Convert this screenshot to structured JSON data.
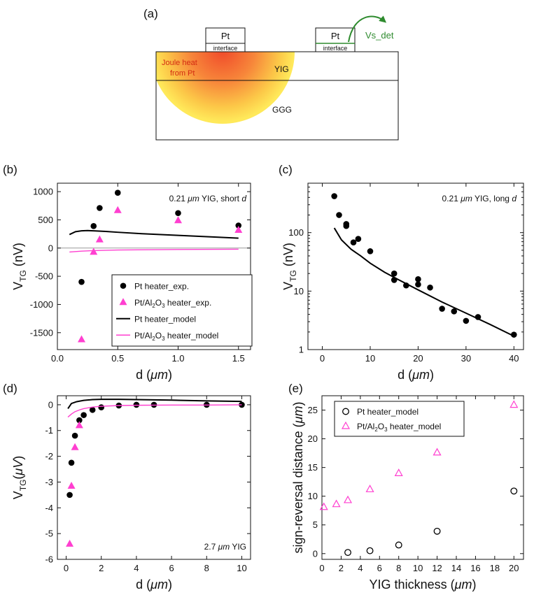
{
  "diagram": {
    "label": "(a)",
    "pt_left": "Pt",
    "pt_right": "Pt",
    "interface_left": "interface",
    "interface_right": "interface",
    "vs_det": "Vs_det",
    "joule_heat": "Joule heat",
    "from_pt": "from Pt",
    "yig": "YIG",
    "ggg": "GGG",
    "colors": {
      "heat_core": "#f04a2a",
      "heat_edge": "#ffe95a",
      "arrow": "#2e8b2e"
    }
  },
  "chart_data": [
    {
      "id": "b",
      "type": "scatter",
      "panel_label": "(b)",
      "annotation": {
        "prefix": "0.21 ",
        "unit": "μm",
        "middle": " YIG, short ",
        "suffix": "d"
      },
      "xlabel": {
        "main": "d (",
        "unit": "μm",
        "end": ")"
      },
      "ylabel": {
        "main": "V",
        "sub": "TG",
        "rest": " (nV)"
      },
      "xlim": [
        0,
        1.6
      ],
      "ylim": [
        -1800,
        1150
      ],
      "xticks": [
        0,
        0.5,
        1.0,
        1.5
      ],
      "xtick_labels": [
        "0.0",
        "0.5",
        "1.0",
        "1.5"
      ],
      "yticks": [
        -1500,
        -1000,
        -500,
        0,
        500,
        1000
      ],
      "ytick_labels": [
        "-1500",
        "-1000",
        "-500",
        "0",
        "500",
        "1000"
      ],
      "series": [
        {
          "name": "Pt heater_exp.",
          "marker": "circle",
          "color": "#000000",
          "x": [
            0.2,
            0.3,
            0.35,
            0.5,
            1.0,
            1.5
          ],
          "y": [
            -600,
            390,
            710,
            980,
            620,
            400
          ]
        },
        {
          "name": "Pt/Al2O3 heater_exp.",
          "marker": "triangle",
          "color": "#ff3fd0",
          "x": [
            0.2,
            0.3,
            0.35,
            0.5,
            1.0,
            1.5
          ],
          "y": [
            -1620,
            -70,
            150,
            670,
            490,
            320
          ]
        },
        {
          "name": "Pt heater_model",
          "marker": "line",
          "color": "#000000",
          "x": [
            0.1,
            0.15,
            0.2,
            0.25,
            0.3,
            0.4,
            0.5,
            0.7,
            1.0,
            1.3,
            1.5
          ],
          "y": [
            240,
            290,
            305,
            310,
            305,
            295,
            280,
            255,
            225,
            195,
            175
          ]
        },
        {
          "name": "Pt/Al2O3 heater_model",
          "marker": "line",
          "color": "#ff3fd0",
          "x": [
            0.1,
            0.2,
            0.3,
            0.5,
            1.0,
            1.5
          ],
          "y": [
            -70,
            -55,
            -45,
            -35,
            -25,
            -20
          ]
        }
      ],
      "legend": [
        {
          "text": "Pt heater_exp.",
          "marker": "circle",
          "color": "#000000"
        },
        {
          "pre": "Pt/Al",
          "s1": "2",
          "mid": "O",
          "s2": "3",
          "post": " heater_exp.",
          "marker": "triangle",
          "color": "#ff3fd0"
        },
        {
          "text": "Pt heater_model",
          "marker": "line",
          "color": "#000000"
        },
        {
          "pre": "Pt/Al",
          "s1": "2",
          "mid": "O",
          "s2": "3",
          "post": " heater_model",
          "marker": "line",
          "color": "#ff3fd0"
        }
      ],
      "zero_line": true
    },
    {
      "id": "c",
      "type": "scatter",
      "panel_label": "(c)",
      "annotation": {
        "prefix": "0.21 ",
        "unit": "μm",
        "middle": " YIG, long ",
        "suffix": "d"
      },
      "xlabel": {
        "main": "d (",
        "unit": "μm",
        "end": ")"
      },
      "ylabel": {
        "main": "V",
        "sub": "TG",
        "rest": " (nV)"
      },
      "yscale": "log",
      "xlim": [
        -3,
        42
      ],
      "ylim": [
        1,
        700
      ],
      "xticks": [
        0,
        10,
        20,
        30,
        40
      ],
      "xtick_labels": [
        "0",
        "10",
        "20",
        "30",
        "40"
      ],
      "yticks": [
        1,
        10,
        100
      ],
      "ytick_labels": [
        "1",
        "10",
        "100"
      ],
      "series": [
        {
          "name": "Pt heater_exp.",
          "marker": "circle",
          "color": "#000000",
          "x": [
            2.5,
            3.5,
            5,
            5,
            6.5,
            7.5,
            10,
            15,
            15,
            17.5,
            20,
            20,
            22.5,
            25,
            27.5,
            30,
            32.5,
            40
          ],
          "y": [
            420,
            200,
            140,
            130,
            68,
            78,
            48,
            20,
            15.5,
            12.5,
            16,
            13,
            11.5,
            5,
            4.5,
            3.1,
            3.6,
            1.8
          ]
        },
        {
          "name": "Pt heater_model",
          "marker": "line",
          "color": "#000000",
          "x": [
            2.5,
            4,
            6,
            8,
            10,
            13,
            16,
            20,
            25,
            30,
            35,
            40
          ],
          "y": [
            120,
            75,
            52,
            40,
            30,
            21,
            15.5,
            10.5,
            6.5,
            4.2,
            2.7,
            1.7
          ]
        }
      ]
    },
    {
      "id": "d",
      "type": "scatter",
      "panel_label": "(d)",
      "annotation": {
        "prefix": "2.7 ",
        "unit": "μm",
        "middle": " YIG",
        "suffix": ""
      },
      "xlabel": {
        "main": "d (",
        "unit": "μm",
        "end": ")"
      },
      "ylabel": {
        "main": "V",
        "sub": "TG",
        "rest": "(",
        "unit": "μV",
        "end": ")"
      },
      "xlim": [
        -0.5,
        10.5
      ],
      "ylim": [
        -6,
        0.35
      ],
      "xticks": [
        0,
        2,
        4,
        6,
        8,
        10
      ],
      "xtick_labels": [
        "0",
        "2",
        "4",
        "6",
        "8",
        "10"
      ],
      "yticks": [
        -6,
        -5,
        -4,
        -3,
        -2,
        -1,
        0
      ],
      "ytick_labels": [
        "-6",
        "-5",
        "-4",
        "-3",
        "-2",
        "-1",
        "0"
      ],
      "series": [
        {
          "name": "Pt heater_exp.",
          "marker": "circle",
          "color": "#000000",
          "x": [
            0.2,
            0.3,
            0.5,
            0.75,
            1,
            1.5,
            2,
            3,
            4,
            5,
            8,
            10
          ],
          "y": [
            -3.5,
            -2.25,
            -1.2,
            -0.6,
            -0.4,
            -0.2,
            -0.1,
            -0.03,
            0,
            0,
            0,
            0
          ]
        },
        {
          "name": "Pt/Al2O3 heater_exp.",
          "marker": "triangle",
          "color": "#ff3fd0",
          "x": [
            0.2,
            0.3,
            0.5,
            0.75
          ],
          "y": [
            -5.4,
            -3.15,
            -1.65,
            -0.8
          ]
        },
        {
          "name": "Pt heater_model",
          "marker": "line",
          "color": "#000000",
          "x": [
            0.1,
            0.3,
            0.6,
            1,
            1.5,
            2,
            3,
            4,
            6,
            8,
            10
          ],
          "y": [
            -0.15,
            0.05,
            0.12,
            0.17,
            0.2,
            0.21,
            0.21,
            0.2,
            0.18,
            0.15,
            0.13
          ]
        },
        {
          "name": "Pt/Al2O3 heater_model",
          "marker": "line",
          "color": "#ff3fd0",
          "x": [
            0.1,
            0.3,
            0.5,
            0.8,
            1,
            1.5,
            2,
            3,
            4,
            6,
            8,
            10
          ],
          "y": [
            -0.48,
            -0.36,
            -0.27,
            -0.19,
            -0.15,
            -0.09,
            -0.06,
            -0.03,
            -0.02,
            -0.01,
            -0.01,
            0
          ]
        }
      ]
    },
    {
      "id": "e",
      "type": "scatter",
      "panel_label": "(e)",
      "xlabel": {
        "main": "YIG thickness (",
        "unit": "μm",
        "end": ")"
      },
      "ylabel": {
        "main": "sign-reversal distance (",
        "unit": "μm",
        "end": ")"
      },
      "xlim": [
        0,
        21
      ],
      "ylim": [
        -1,
        27.5
      ],
      "xticks": [
        0,
        2,
        4,
        6,
        8,
        10,
        12,
        14,
        16,
        18,
        20
      ],
      "xtick_labels": [
        "0",
        "2",
        "4",
        "6",
        "8",
        "10",
        "12",
        "14",
        "16",
        "18",
        "20"
      ],
      "yticks": [
        0,
        5,
        10,
        15,
        20,
        25
      ],
      "ytick_labels": [
        "0",
        "5",
        "10",
        "15",
        "20",
        "25"
      ],
      "series": [
        {
          "name": "Pt heater_model",
          "marker": "open-circle",
          "color": "#000000",
          "x": [
            2.7,
            5,
            8,
            12,
            20
          ],
          "y": [
            0.2,
            0.5,
            1.5,
            3.9,
            10.9
          ]
        },
        {
          "name": "Pt/Al2O3 heater_model",
          "marker": "open-triangle",
          "color": "#ff3fd0",
          "x": [
            0.2,
            1.5,
            2.7,
            5,
            8,
            12,
            20
          ],
          "y": [
            8.1,
            8.6,
            9.3,
            11.2,
            14.0,
            17.6,
            25.9
          ]
        }
      ],
      "legend": [
        {
          "text": "Pt heater_model",
          "marker": "open-circle",
          "color": "#000000"
        },
        {
          "pre": "Pt/Al",
          "s1": "2",
          "mid": "O",
          "s2": "3",
          "post": " heater_model",
          "marker": "open-triangle",
          "color": "#ff3fd0"
        }
      ]
    }
  ]
}
